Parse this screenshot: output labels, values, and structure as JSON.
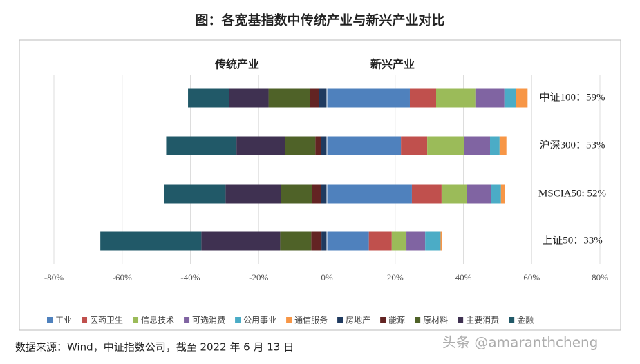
{
  "chart_data": {
    "type": "diverging-bar",
    "title": "图：各宽基指数中传统产业与新兴产业对比",
    "annotations": [
      "传统产业",
      "新兴产业"
    ],
    "categories": [
      "中证100：59%",
      "沪深300：53%",
      "MSCIA50: 52%",
      "上证50：33%"
    ],
    "series": [
      {
        "name": "工业",
        "color": "#4f81bd",
        "values": [
          24.3,
          21.7,
          24.9,
          12.3
        ]
      },
      {
        "name": "医药卫生",
        "color": "#c0504d",
        "values": [
          7.7,
          7.7,
          8.7,
          6.7
        ]
      },
      {
        "name": "信息技术",
        "color": "#9bbb59",
        "values": [
          11.5,
          10.7,
          7.5,
          4.3
        ]
      },
      {
        "name": "可选消费",
        "color": "#8064a2",
        "values": [
          8.5,
          7.7,
          6.9,
          5.5
        ]
      },
      {
        "name": "公用事业",
        "color": "#4bacc6",
        "values": [
          3.4,
          2.8,
          3.0,
          4.5
        ]
      },
      {
        "name": "通信服务",
        "color": "#f79646",
        "values": [
          3.4,
          2.0,
          1.2,
          0.4
        ]
      },
      {
        "name": "房地产",
        "color": "#1f3a5f",
        "values": [
          -2.4,
          -1.8,
          -1.8,
          -1.6
        ]
      },
      {
        "name": "能源",
        "color": "#632423",
        "values": [
          -2.6,
          -1.6,
          -2.6,
          -3.0
        ]
      },
      {
        "name": "原材料",
        "color": "#4f6228",
        "values": [
          -12.1,
          -8.9,
          -9.1,
          -9.1
        ]
      },
      {
        "name": "主要消费",
        "color": "#3f3151",
        "values": [
          -11.5,
          -14.2,
          -16.2,
          -23.1
        ]
      },
      {
        "name": "金融",
        "color": "#215968",
        "values": [
          -12.1,
          -20.6,
          -18.0,
          -29.6
        ]
      }
    ],
    "xlim": [
      -80,
      80
    ],
    "xticks": [
      {
        "value": -80,
        "label": "-80%"
      },
      {
        "value": -60,
        "label": "-60%"
      },
      {
        "value": -40,
        "label": "-40%"
      },
      {
        "value": -20,
        "label": "-20%"
      },
      {
        "value": 0,
        "label": "0%"
      },
      {
        "value": 20,
        "label": "20%"
      },
      {
        "value": 40,
        "label": "40%"
      },
      {
        "value": 60,
        "label": "60%"
      },
      {
        "value": 80,
        "label": "80%"
      }
    ],
    "grid": true,
    "legend": "bottom",
    "source": "数据来源：Wind，中证指数公司，截至 2022 年 6 月 13 日",
    "watermark": "头条 @amaranthcheng"
  }
}
